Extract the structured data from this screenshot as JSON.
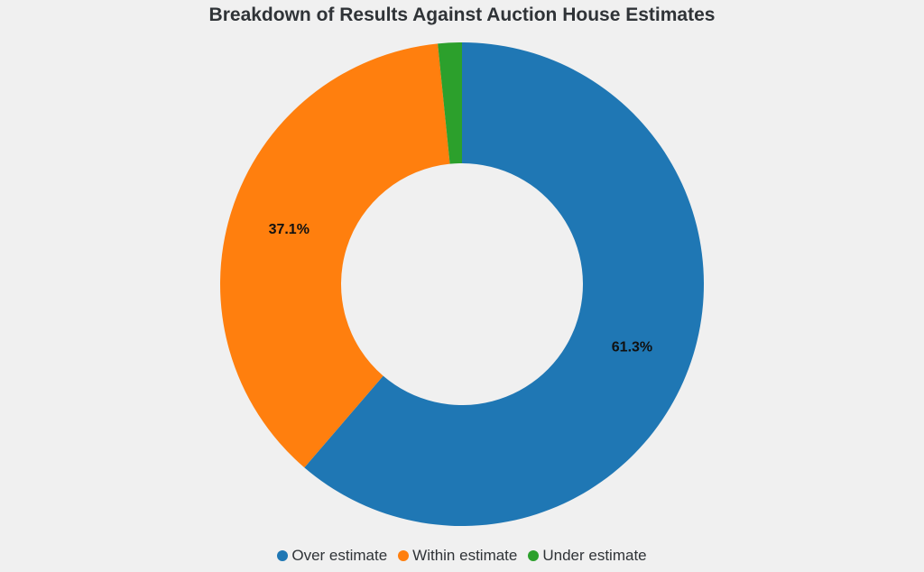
{
  "chart_data": {
    "type": "pie",
    "variant": "donut",
    "title": "Breakdown of Results Against Auction House Estimates",
    "categories": [
      "Over estimate",
      "Within estimate",
      "Under estimate"
    ],
    "values": [
      61.3,
      37.1,
      1.6
    ],
    "labels": [
      "61.3%",
      "37.1%",
      ""
    ],
    "colors": [
      "#1f77b4",
      "#ff7f0e",
      "#2ca02c"
    ],
    "legend_position": "bottom-center",
    "start": "12-o'clock",
    "direction": "clockwise"
  }
}
